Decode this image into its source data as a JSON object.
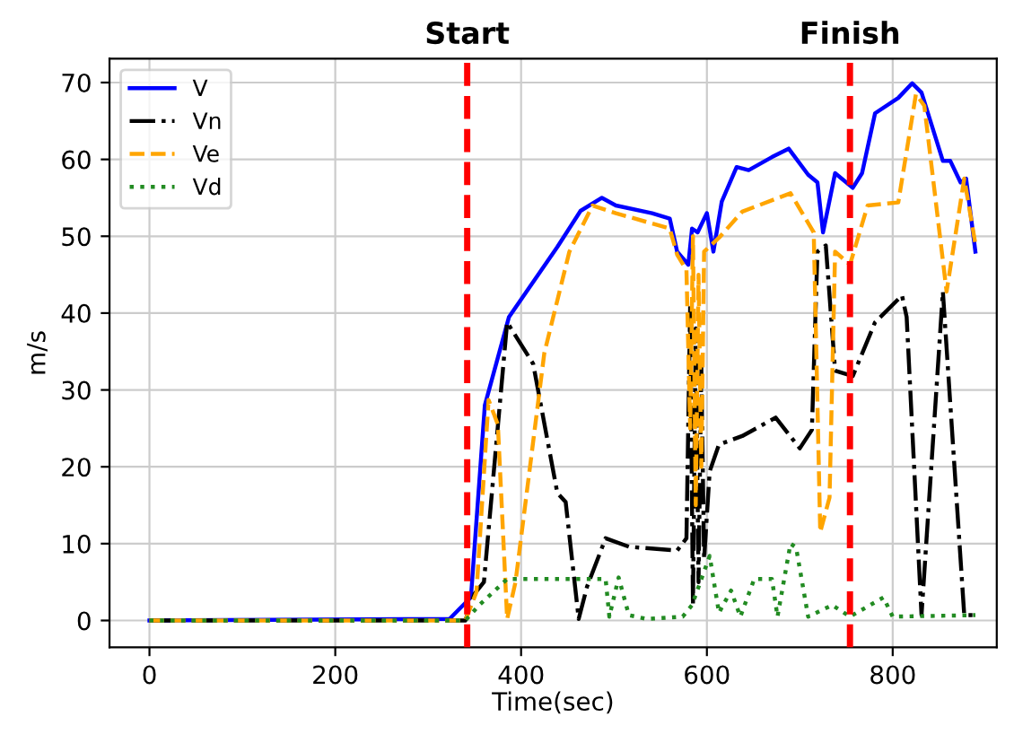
{
  "chart_data": {
    "type": "line",
    "xlabel": "Time(sec)",
    "ylabel": "m/s",
    "xlim": [
      -43,
      912
    ],
    "ylim": [
      -3.5,
      73.1
    ],
    "xticks": [
      0,
      200,
      400,
      600,
      800
    ],
    "yticks": [
      0,
      10,
      20,
      30,
      40,
      50,
      60,
      70
    ],
    "grid": true,
    "legend": "top left",
    "ref_lines": [
      {
        "axis": "x",
        "value": 342,
        "label": "Start",
        "color": "#ff0000",
        "line_style": "dashed"
      },
      {
        "axis": "x",
        "value": 754,
        "label": "Finish",
        "color": "#ff0000",
        "line_style": "dashed"
      }
    ],
    "series": [
      {
        "name": "V",
        "color": "#0000ff",
        "line_style": "solid",
        "x": [
          0,
          323,
          346,
          361,
          387,
          439,
          464,
          487,
          502,
          541,
          560,
          568,
          580,
          584,
          590,
          600,
          607,
          616,
          632,
          645,
          670,
          688,
          709,
          719,
          725,
          738,
          757,
          767,
          781,
          806,
          821,
          831,
          854,
          862,
          873,
          879,
          889
        ],
        "values": [
          0,
          0.2,
          3,
          28,
          39.5,
          48.6,
          53.3,
          55,
          54,
          53,
          52.3,
          48,
          46.3,
          51,
          50.5,
          53,
          48,
          54.5,
          59,
          58.6,
          60.3,
          61.4,
          58,
          57,
          50.5,
          58.2,
          56.3,
          58.2,
          66,
          68,
          69.9,
          68.7,
          59.8,
          59.8,
          57,
          57.5,
          48
        ]
      },
      {
        "name": "Vn",
        "color": "#000000",
        "line_style": "dashdot",
        "x": [
          0,
          340,
          350,
          360,
          385,
          413,
          439,
          448,
          462,
          471,
          491,
          516,
          568,
          578,
          582,
          585,
          588,
          591,
          594,
          597,
          603,
          613,
          638,
          674,
          700,
          713,
          719,
          728,
          738,
          757,
          781,
          810,
          815,
          831,
          854,
          877,
          889
        ],
        "values": [
          0,
          0,
          3.5,
          5,
          38.8,
          33.4,
          16.6,
          15.4,
          0.2,
          4.4,
          10.7,
          9.6,
          9.1,
          10.7,
          41,
          2,
          38,
          5,
          33,
          8,
          19.4,
          22.9,
          24,
          26.4,
          22.4,
          24.8,
          48,
          48.8,
          32.5,
          31.8,
          38.8,
          42.3,
          39.5,
          0.7,
          42.8,
          0.7,
          0.7
        ]
      },
      {
        "name": "Ve",
        "color": "#ffa500",
        "line_style": "dashed",
        "x": [
          0,
          340,
          352,
          365,
          375,
          385,
          394,
          425,
          452,
          477,
          502,
          560,
          568,
          578,
          582,
          585,
          588,
          591,
          594,
          597,
          613,
          638,
          690,
          715,
          722,
          732,
          738,
          754,
          773,
          806,
          825,
          834,
          858,
          877,
          889
        ],
        "values": [
          0,
          0,
          3.7,
          28.7,
          25.5,
          0.2,
          5,
          34.8,
          48,
          54,
          53,
          51,
          47.6,
          45.6,
          25,
          50,
          15,
          45,
          20,
          48,
          49.8,
          53.2,
          55.6,
          50.5,
          11.5,
          16,
          48,
          46.3,
          54,
          54.4,
          68.5,
          67,
          42.8,
          57.5,
          49
        ]
      },
      {
        "name": "Vd",
        "color": "#228b22",
        "line_style": "dotted",
        "x": [
          0,
          340,
          355,
          385,
          491,
          495,
          505,
          516,
          535,
          574,
          584,
          603,
          613,
          626,
          636,
          651,
          670,
          676,
          690,
          696,
          709,
          735,
          754,
          790,
          800,
          889
        ],
        "values": [
          0,
          0,
          2,
          5.4,
          5.4,
          0.5,
          5.6,
          0.7,
          0.2,
          0.5,
          2,
          8.4,
          1,
          3.9,
          0.5,
          5.4,
          5.4,
          0.5,
          10,
          9.5,
          0.5,
          2,
          0.5,
          3,
          0.5,
          0.7
        ]
      }
    ]
  }
}
